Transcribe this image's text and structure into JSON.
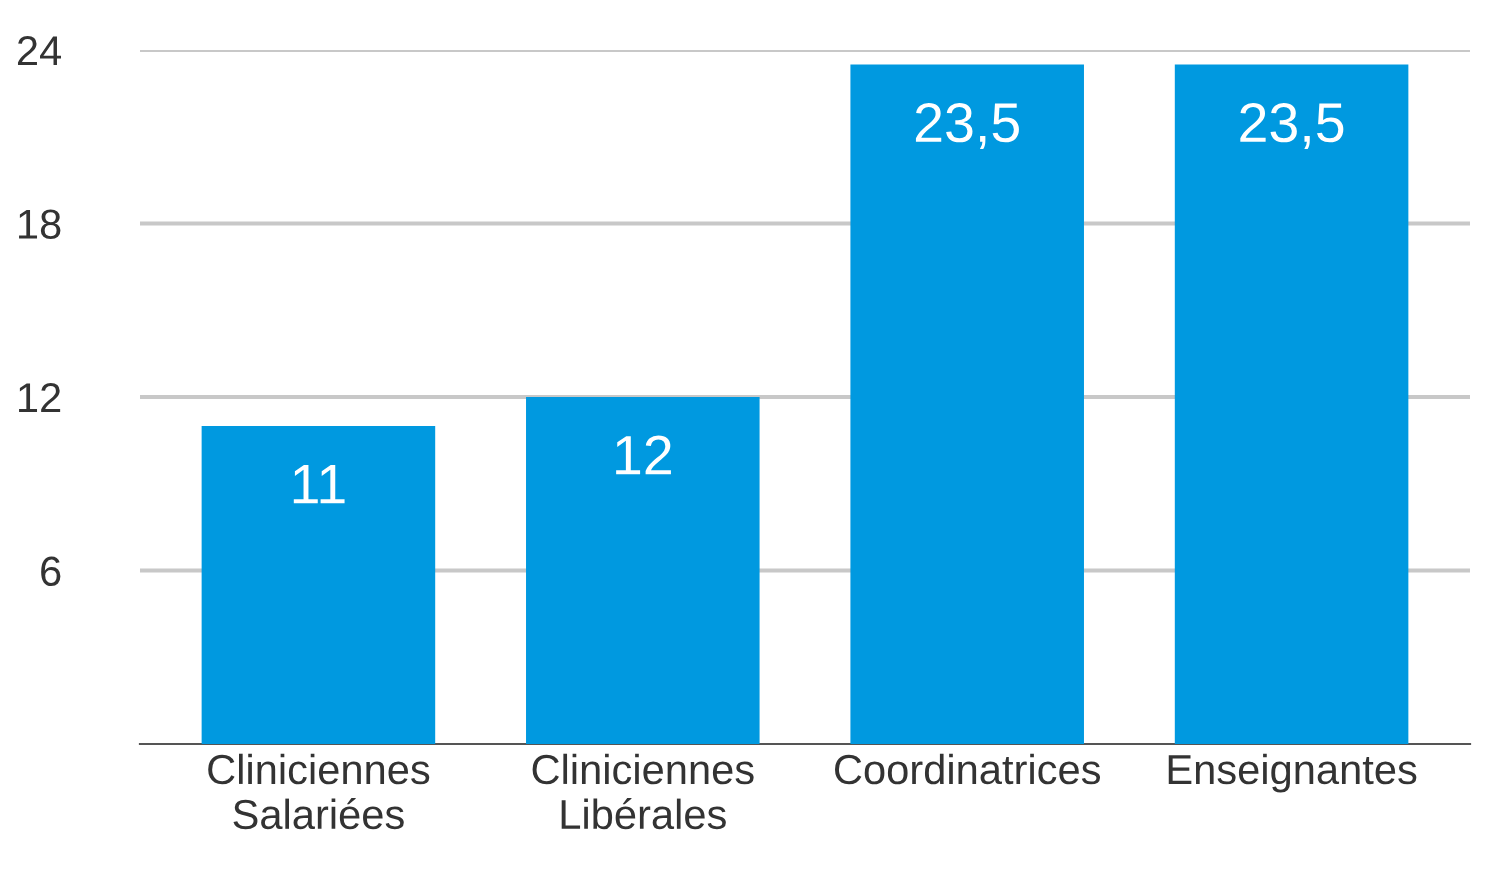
{
  "chart_data": {
    "type": "bar",
    "categories": [
      "Cliniciennes\nSalariées",
      "Cliniciennes\nLibérales",
      "Coordinatrices",
      "Enseignantes"
    ],
    "values": [
      11,
      12,
      23.5,
      23.5
    ],
    "value_labels": [
      "11",
      "12",
      "23,5",
      "23,5"
    ],
    "color": "#0099e0",
    "ylim": [
      0,
      24
    ],
    "yticks": [
      6,
      12,
      18,
      24
    ],
    "grid": "y"
  }
}
